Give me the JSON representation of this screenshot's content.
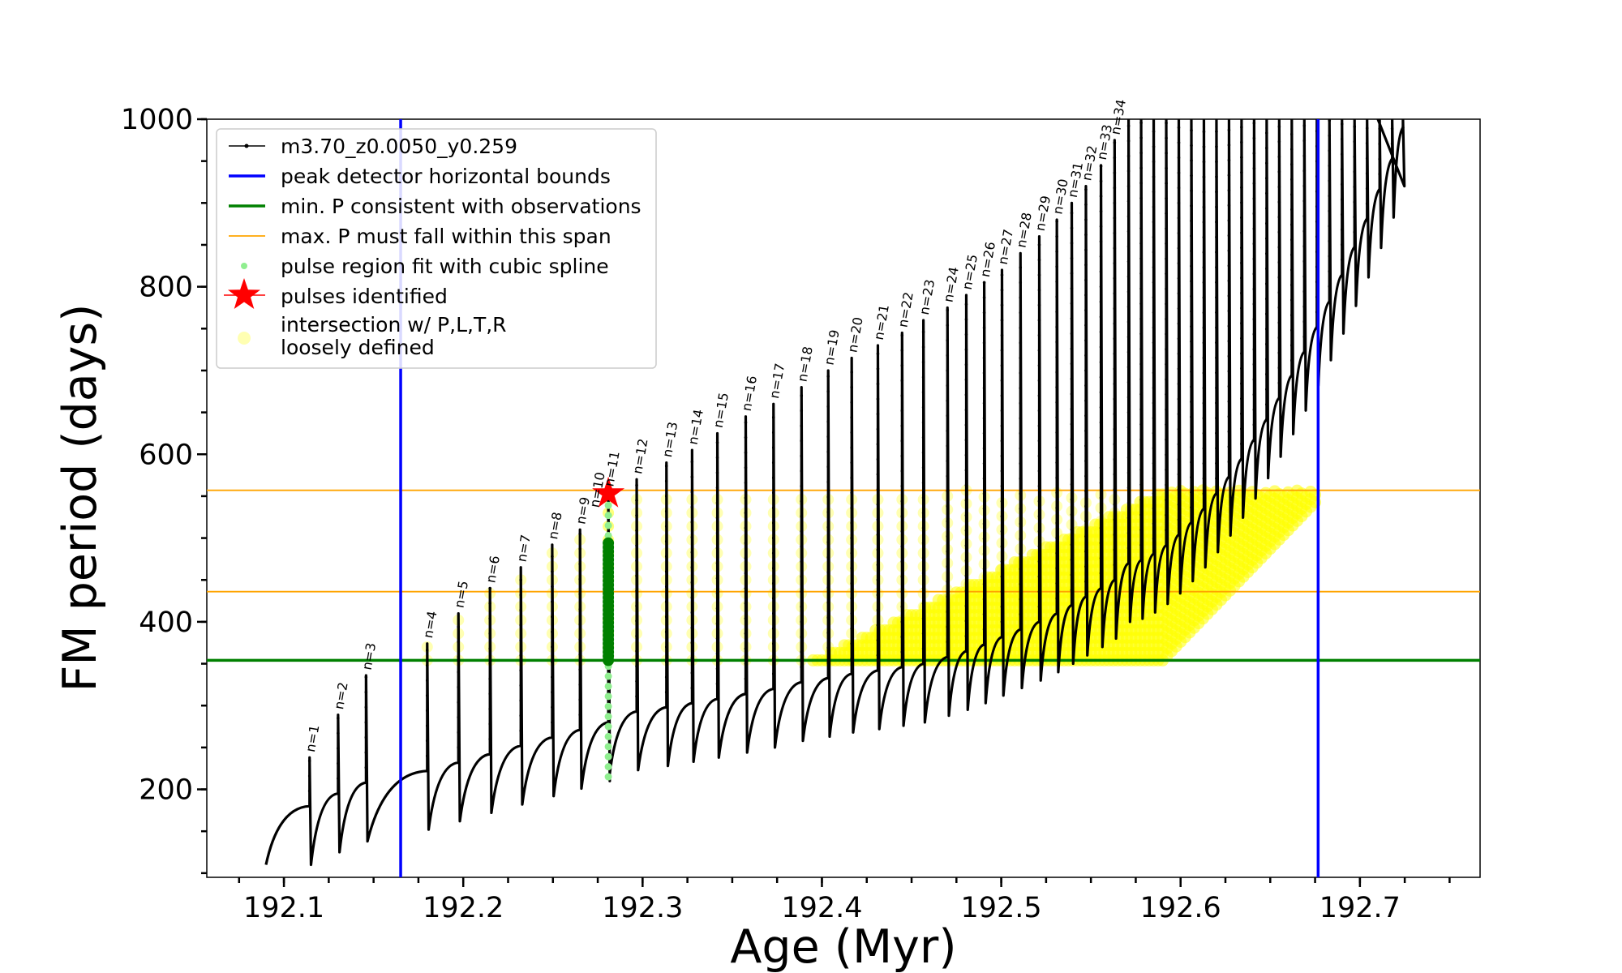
{
  "chart_data": {
    "type": "line",
    "xlabel": "Age (Myr)",
    "ylabel": "FM period (days)",
    "xlim": [
      192.057,
      192.767
    ],
    "ylim": [
      95,
      1000
    ],
    "x_ticks": [
      192.1,
      192.2,
      192.3,
      192.4,
      192.5,
      192.6,
      192.7
    ],
    "x_tick_labels": [
      "192.1",
      "192.2",
      "192.3",
      "192.4",
      "192.5",
      "192.6",
      "192.7"
    ],
    "y_ticks": [
      200,
      400,
      600,
      800,
      1000
    ],
    "y_tick_labels": [
      "200",
      "400",
      "600",
      "800",
      "1000"
    ],
    "x_minor_step": 0.025,
    "y_minor_step": 50,
    "legend_position": "upper-left",
    "series": [
      {
        "name": "m3.70_z0.0050_y0.259",
        "style": "black line with small point markers",
        "color": "#000000",
        "start": [
          192.09,
          110
        ],
        "pulses": [
          {
            "n": 1,
            "age": 192.1143,
            "peak": 238,
            "base": 180
          },
          {
            "n": 2,
            "age": 192.1302,
            "peak": 289,
            "base": 195
          },
          {
            "n": 3,
            "age": 192.1458,
            "peak": 336,
            "base": 208
          },
          {
            "n": 4,
            "age": 192.1799,
            "peak": 374,
            "base": 222
          },
          {
            "n": 5,
            "age": 192.1973,
            "peak": 410,
            "base": 232
          },
          {
            "n": 6,
            "age": 192.2149,
            "peak": 440,
            "base": 242
          },
          {
            "n": 7,
            "age": 192.2321,
            "peak": 465,
            "base": 252
          },
          {
            "n": 8,
            "age": 192.2496,
            "peak": 492,
            "base": 262
          },
          {
            "n": 9,
            "age": 192.2651,
            "peak": 510,
            "base": 271
          },
          {
            "n": 10,
            "age": 192.2809,
            "peak": 530,
            "base": 280
          },
          {
            "n": 11,
            "age": 192.2809,
            "peak": 555,
            "base": 289
          },
          {
            "n": 12,
            "age": 192.2967,
            "peak": 570,
            "base": 293
          },
          {
            "n": 13,
            "age": 192.3133,
            "peak": 590,
            "base": 298
          },
          {
            "n": 14,
            "age": 192.3276,
            "peak": 605,
            "base": 303
          },
          {
            "n": 15,
            "age": 192.3417,
            "peak": 625,
            "base": 308
          },
          {
            "n": 16,
            "age": 192.3575,
            "peak": 645,
            "base": 314
          },
          {
            "n": 17,
            "age": 192.373,
            "peak": 660,
            "base": 320
          },
          {
            "n": 18,
            "age": 192.3886,
            "peak": 680,
            "base": 328
          },
          {
            "n": 19,
            "age": 192.4035,
            "peak": 700,
            "base": 333
          },
          {
            "n": 20,
            "age": 192.4166,
            "peak": 715,
            "base": 338
          },
          {
            "n": 21,
            "age": 192.4312,
            "peak": 730,
            "base": 342
          },
          {
            "n": 22,
            "age": 192.4447,
            "peak": 745,
            "base": 346
          },
          {
            "n": 23,
            "age": 192.4566,
            "peak": 760,
            "base": 350
          },
          {
            "n": 24,
            "age": 192.47,
            "peak": 775,
            "base": 358
          },
          {
            "n": 25,
            "age": 192.4805,
            "peak": 790,
            "base": 365
          },
          {
            "n": 26,
            "age": 192.4905,
            "peak": 805,
            "base": 373
          },
          {
            "n": 27,
            "age": 192.5004,
            "peak": 820,
            "base": 382
          },
          {
            "n": 28,
            "age": 192.5107,
            "peak": 840,
            "base": 391
          },
          {
            "n": 29,
            "age": 192.5212,
            "peak": 860,
            "base": 400
          },
          {
            "n": 30,
            "age": 192.531,
            "peak": 880,
            "base": 410
          },
          {
            "n": 31,
            "age": 192.5393,
            "peak": 900,
            "base": 420
          },
          {
            "n": 32,
            "age": 192.5472,
            "peak": 920,
            "base": 430
          },
          {
            "n": 33,
            "age": 192.5556,
            "peak": 945,
            "base": 440
          },
          {
            "n": 34,
            "age": 192.5632,
            "peak": 975,
            "base": 450
          }
        ],
        "late_pulse_ages": [
          192.571,
          192.578,
          192.585,
          192.592,
          192.599,
          192.606,
          192.613,
          192.62,
          192.627,
          192.634,
          192.641,
          192.648,
          192.655,
          192.662,
          192.669,
          192.676,
          192.683,
          192.69,
          192.697,
          192.704,
          192.711,
          192.718,
          192.724
        ],
        "end": [
          192.71,
          1000
        ]
      },
      {
        "name": "peak detector horizontal bounds",
        "style": "vertical line",
        "color": "#0000ff",
        "x": [
          192.1651,
          192.6767
        ]
      },
      {
        "name": "min. P consistent with observations",
        "style": "horizontal line",
        "color": "#008000",
        "y": 354
      },
      {
        "name": "max. P must fall within this span",
        "style": "horizontal lines",
        "color": "#ffa500",
        "y": [
          436,
          557
        ]
      },
      {
        "name": "pulse region fit with cubic spline",
        "style": "light green points",
        "color": "#90ee90",
        "x": 192.2809,
        "y_range": [
          215,
          555
        ]
      },
      {
        "name": "pulses identified",
        "style": "red star marker",
        "color": "#ff0000",
        "points": [
          {
            "x": 192.2809,
            "y": 553
          }
        ]
      },
      {
        "name": "intersection w/ P,L,T,R loosely defined",
        "style": "translucent yellow circles",
        "color": "#ffff00",
        "y_range": [
          354,
          557
        ]
      }
    ],
    "highlight": {
      "color": "#008000",
      "x": 192.2809,
      "y_range": [
        354,
        497
      ]
    }
  },
  "legend": {
    "items": [
      {
        "label": "m3.70_z0.0050_y0.259",
        "color": "#000000"
      },
      {
        "label": "peak detector horizontal bounds",
        "color": "#0000ff"
      },
      {
        "label": "min. P consistent with observations",
        "color": "#008000"
      },
      {
        "label": "max. P must fall within this span",
        "color": "#ffa500"
      },
      {
        "label": "pulse region fit with cubic spline",
        "color": "#90ee90"
      },
      {
        "label": "pulses identified",
        "color": "#ff0000"
      },
      {
        "label_line1": "intersection w/ P,L,T,R",
        "label_line2": "loosely defined",
        "color": "#ffff00"
      }
    ]
  }
}
